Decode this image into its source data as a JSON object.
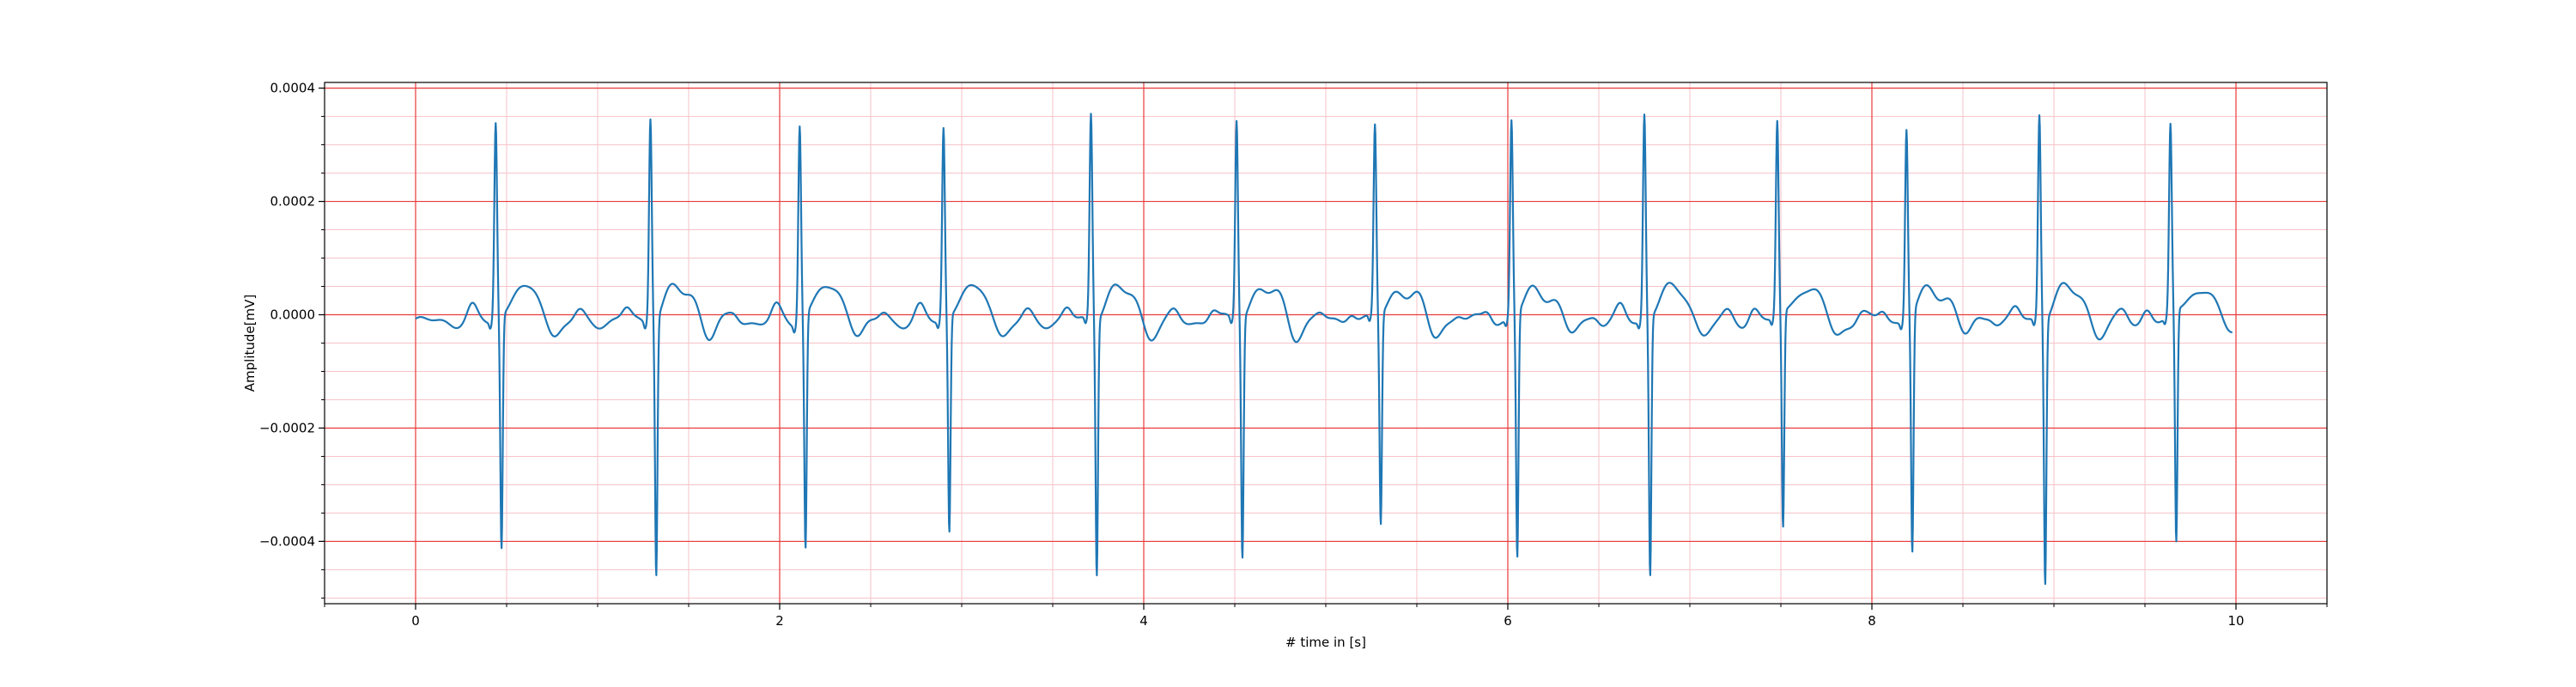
{
  "chart_data": {
    "type": "line",
    "title": "",
    "xlabel": "# time in [s]",
    "ylabel": "Amplitude[mV]",
    "xlim": [
      -0.5,
      10.5
    ],
    "ylim": [
      -0.00051,
      0.00041
    ],
    "x_ticks": [
      0,
      2,
      4,
      6,
      8,
      10
    ],
    "x_tick_labels": [
      "0",
      "2",
      "4",
      "6",
      "8",
      "10"
    ],
    "y_ticks": [
      0.0004,
      0.0002,
      0.0,
      -0.0002,
      -0.0004
    ],
    "y_tick_labels": [
      "0.0004",
      "0.0002",
      "0.0000",
      "−0.0002",
      "−0.0004"
    ],
    "grid": {
      "major": true,
      "minor": true,
      "major_color": "#e83a3a",
      "minor_color": "#f6c2c8"
    },
    "line_color": "#1f77b4",
    "series": [
      {
        "beats": [
          {
            "t": 0.44,
            "r": 0.00035,
            "s": -0.00041
          },
          {
            "t": 1.29,
            "r": 0.000365,
            "s": -0.00045
          },
          {
            "t": 2.11,
            "r": 0.00035,
            "s": -0.00041
          },
          {
            "t": 2.9,
            "r": 0.00034,
            "s": -0.00038
          },
          {
            "t": 3.71,
            "r": 0.000365,
            "s": -0.00045
          },
          {
            "t": 4.51,
            "r": 0.000355,
            "s": -0.00042
          },
          {
            "t": 5.27,
            "r": 0.00034,
            "s": -0.00037
          },
          {
            "t": 6.02,
            "r": 0.00035,
            "s": -0.00043
          },
          {
            "t": 6.75,
            "r": 0.000365,
            "s": -0.000455
          },
          {
            "t": 7.48,
            "r": 0.000345,
            "s": -0.00038
          },
          {
            "t": 8.19,
            "r": 0.00034,
            "s": -0.00042
          },
          {
            "t": 8.92,
            "r": 0.000365,
            "s": -0.000465
          },
          {
            "t": 9.64,
            "r": 0.000335,
            "s": -0.00041
          }
        ],
        "x_start": 0.0,
        "x_end": 9.98
      }
    ]
  }
}
